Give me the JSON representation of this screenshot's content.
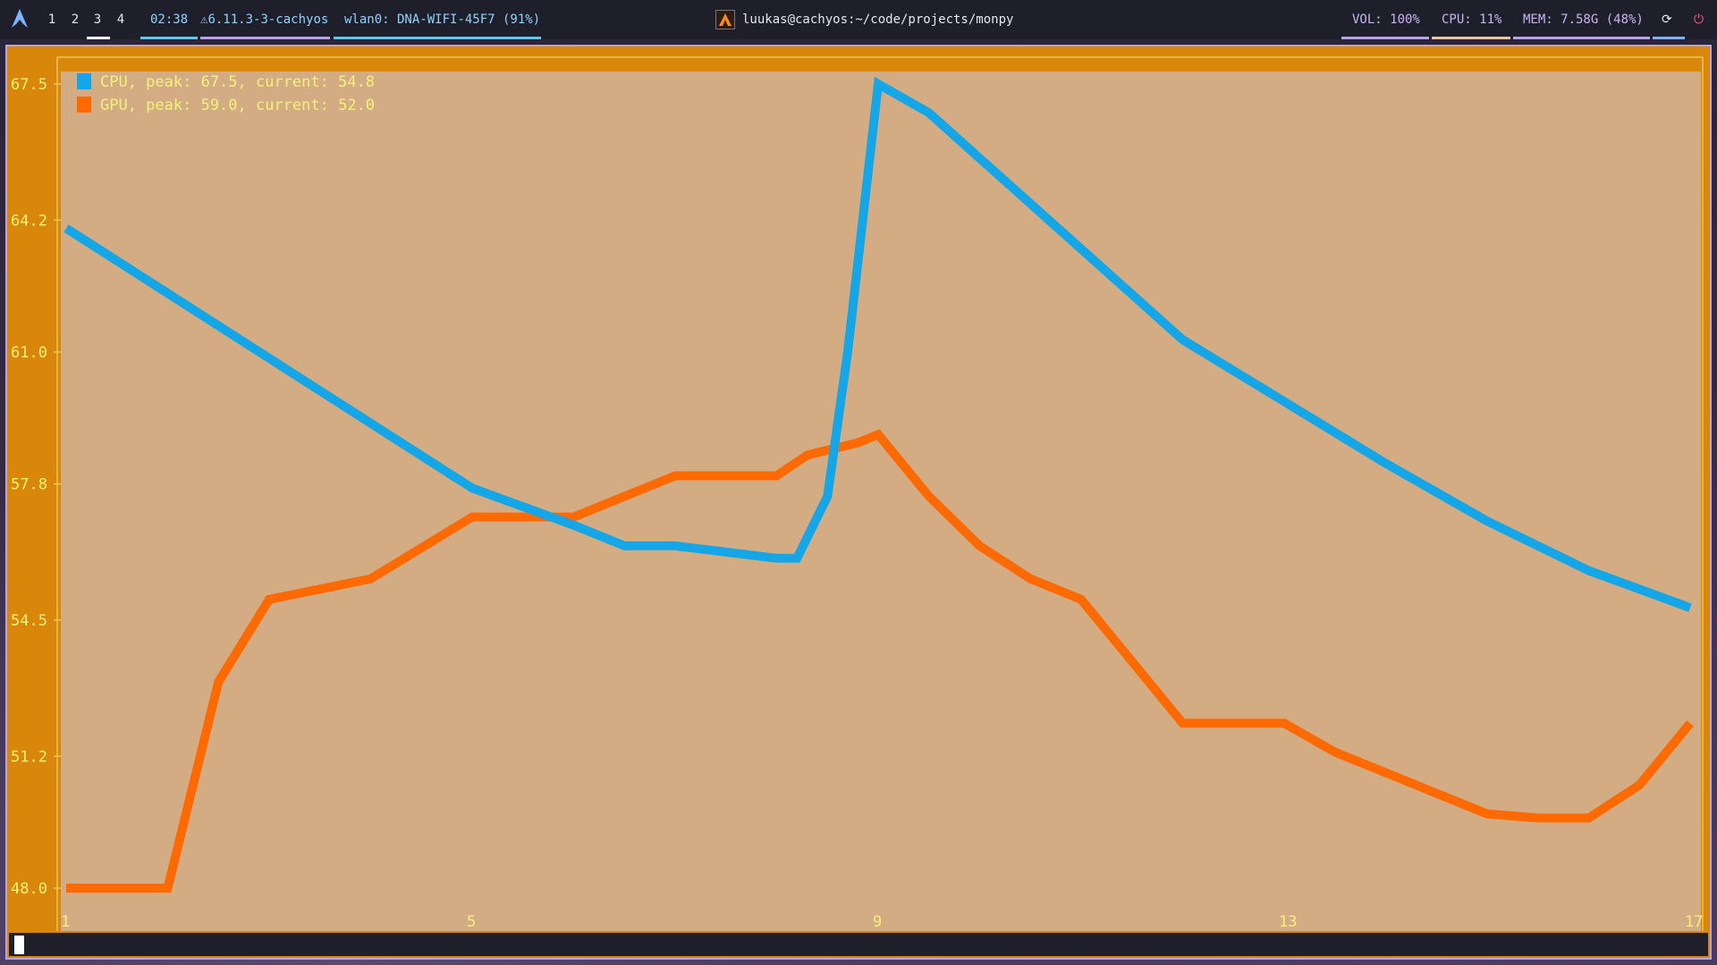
{
  "topbar": {
    "workspaces": [
      "1",
      "2",
      "3",
      "4"
    ],
    "clock": "02:38",
    "kernel": "6.11.3-3-cachyos",
    "network": "wlan0: DNA-WIFI-45F7 (91%)",
    "window_title": "luukas@cachyos:~/code/projects/monpy",
    "volume": "VOL: 100%",
    "cpu": "CPU: 11%",
    "memory": "MEM: 7.58G (48%)",
    "icons": [
      "arch-logo-icon",
      "kernel-icon",
      "app-icon",
      "update-icon",
      "power-icon"
    ]
  },
  "colors": {
    "accent": "#b9a2e8",
    "terminal_bg": "#d8870a",
    "plot_bg": "#d4ac84",
    "cpu_series": "#14a6e6",
    "gpu_series": "#ff6a00",
    "tick_text": "#f2f27a"
  },
  "chart_data": {
    "type": "line",
    "title": "",
    "xlabel": "",
    "ylabel": "",
    "xlim": [
      1,
      17
    ],
    "ylim": [
      48.0,
      67.5
    ],
    "x_ticks": [
      "1",
      "5",
      "9",
      "13",
      "17"
    ],
    "y_ticks": [
      "48.0",
      "51.2",
      "54.5",
      "57.8",
      "61.0",
      "64.2",
      "67.5"
    ],
    "legend_position": "top-left",
    "series": [
      {
        "name": "CPU",
        "legend": "CPU, peak: 67.5, current: 54.8",
        "color": "#14a6e6",
        "x": [
          1,
          5,
          6,
          6.5,
          7,
          8,
          8.2,
          8.5,
          8.7,
          9,
          9.5,
          10,
          11,
          12,
          13,
          14,
          15,
          16,
          17
        ],
        "y": [
          64.0,
          57.7,
          56.8,
          56.3,
          56.3,
          56.0,
          56.0,
          57.5,
          61.0,
          67.5,
          66.8,
          65.7,
          63.5,
          61.3,
          59.8,
          58.3,
          56.9,
          55.7,
          54.8
        ]
      },
      {
        "name": "GPU",
        "legend": "GPU, peak: 59.0, current: 52.0",
        "color": "#ff6a00",
        "x": [
          1,
          2,
          2.5,
          3,
          4,
          5,
          5.5,
          6,
          6.5,
          7,
          8,
          8.3,
          8.8,
          9,
          9.5,
          10,
          10.5,
          11,
          11.5,
          12,
          13,
          13.5,
          14,
          15,
          15.5,
          16,
          16.5,
          17
        ],
        "y": [
          48.0,
          48.0,
          53.0,
          55.0,
          55.5,
          57.0,
          57.0,
          57.0,
          57.5,
          58.0,
          58.0,
          58.5,
          58.8,
          59.0,
          57.5,
          56.3,
          55.5,
          55.0,
          53.5,
          52.0,
          52.0,
          51.3,
          50.8,
          49.8,
          49.7,
          49.7,
          50.5,
          52.0
        ]
      }
    ]
  }
}
